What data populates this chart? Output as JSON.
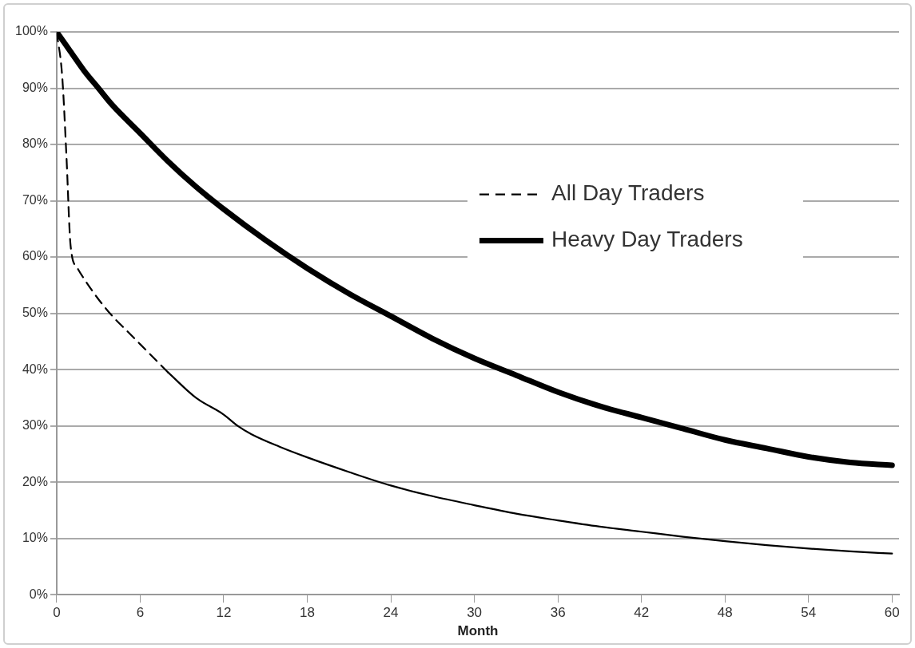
{
  "chart_data": {
    "type": "line",
    "xlabel": "Month",
    "xlim": [
      0,
      60.5
    ],
    "xticks": [
      0,
      6,
      12,
      18,
      24,
      30,
      36,
      42,
      48,
      54,
      60
    ],
    "ylim": [
      0,
      100
    ],
    "yticks": [
      {
        "value": 0,
        "label": "0%"
      },
      {
        "value": 10,
        "label": "10%"
      },
      {
        "value": 20,
        "label": "20%"
      },
      {
        "value": 30,
        "label": "30%"
      },
      {
        "value": 40,
        "label": "40%"
      },
      {
        "value": 50,
        "label": "50%"
      },
      {
        "value": 60,
        "label": "60%"
      },
      {
        "value": 70,
        "label": "70%"
      },
      {
        "value": 80,
        "label": "80%"
      },
      {
        "value": 90,
        "label": "90%"
      },
      {
        "value": 100,
        "label": "100%"
      }
    ],
    "grid": "y",
    "legend": "right",
    "marker": "none",
    "series": [
      {
        "name": "All Day Traders",
        "color": "#000000",
        "line_style": "dashed",
        "x": [
          0,
          0.4,
          0.7,
          1,
          1.5,
          2,
          3,
          4,
          5,
          6,
          7,
          8
        ],
        "values": [
          100,
          92,
          78,
          62,
          58,
          56,
          52.5,
          49.5,
          47,
          44.5,
          42,
          39.5
        ]
      },
      {
        "name": "Heavy Day Traders",
        "color": "#000000",
        "line_style": "solid",
        "x": [
          0,
          1,
          2,
          3,
          4,
          6,
          8,
          10,
          12,
          15,
          18,
          21,
          24,
          27,
          30,
          33,
          36,
          39,
          42,
          45,
          48,
          51,
          54,
          57,
          60
        ],
        "values": [
          100,
          96.5,
          93,
          90,
          87,
          82,
          77,
          72.5,
          68.5,
          63,
          58,
          53.5,
          49.5,
          45.5,
          42,
          39,
          36,
          33.5,
          31.5,
          29.5,
          27.5,
          26,
          24.5,
          23.5,
          23
        ]
      },
      {
        "color": "#000000",
        "line_style": "solid",
        "x": [
          8,
          10,
          12,
          13,
          14,
          16,
          18,
          21,
          24,
          27,
          30,
          33,
          36,
          39,
          42,
          45,
          48,
          51,
          54,
          57,
          60
        ],
        "values": [
          39.5,
          35,
          32,
          30,
          28.5,
          26.3,
          24.4,
          21.8,
          19.4,
          17.5,
          15.9,
          14.4,
          13.2,
          12.1,
          11.2,
          10.3,
          9.5,
          8.8,
          8.2,
          7.7,
          7.3
        ]
      }
    ]
  }
}
